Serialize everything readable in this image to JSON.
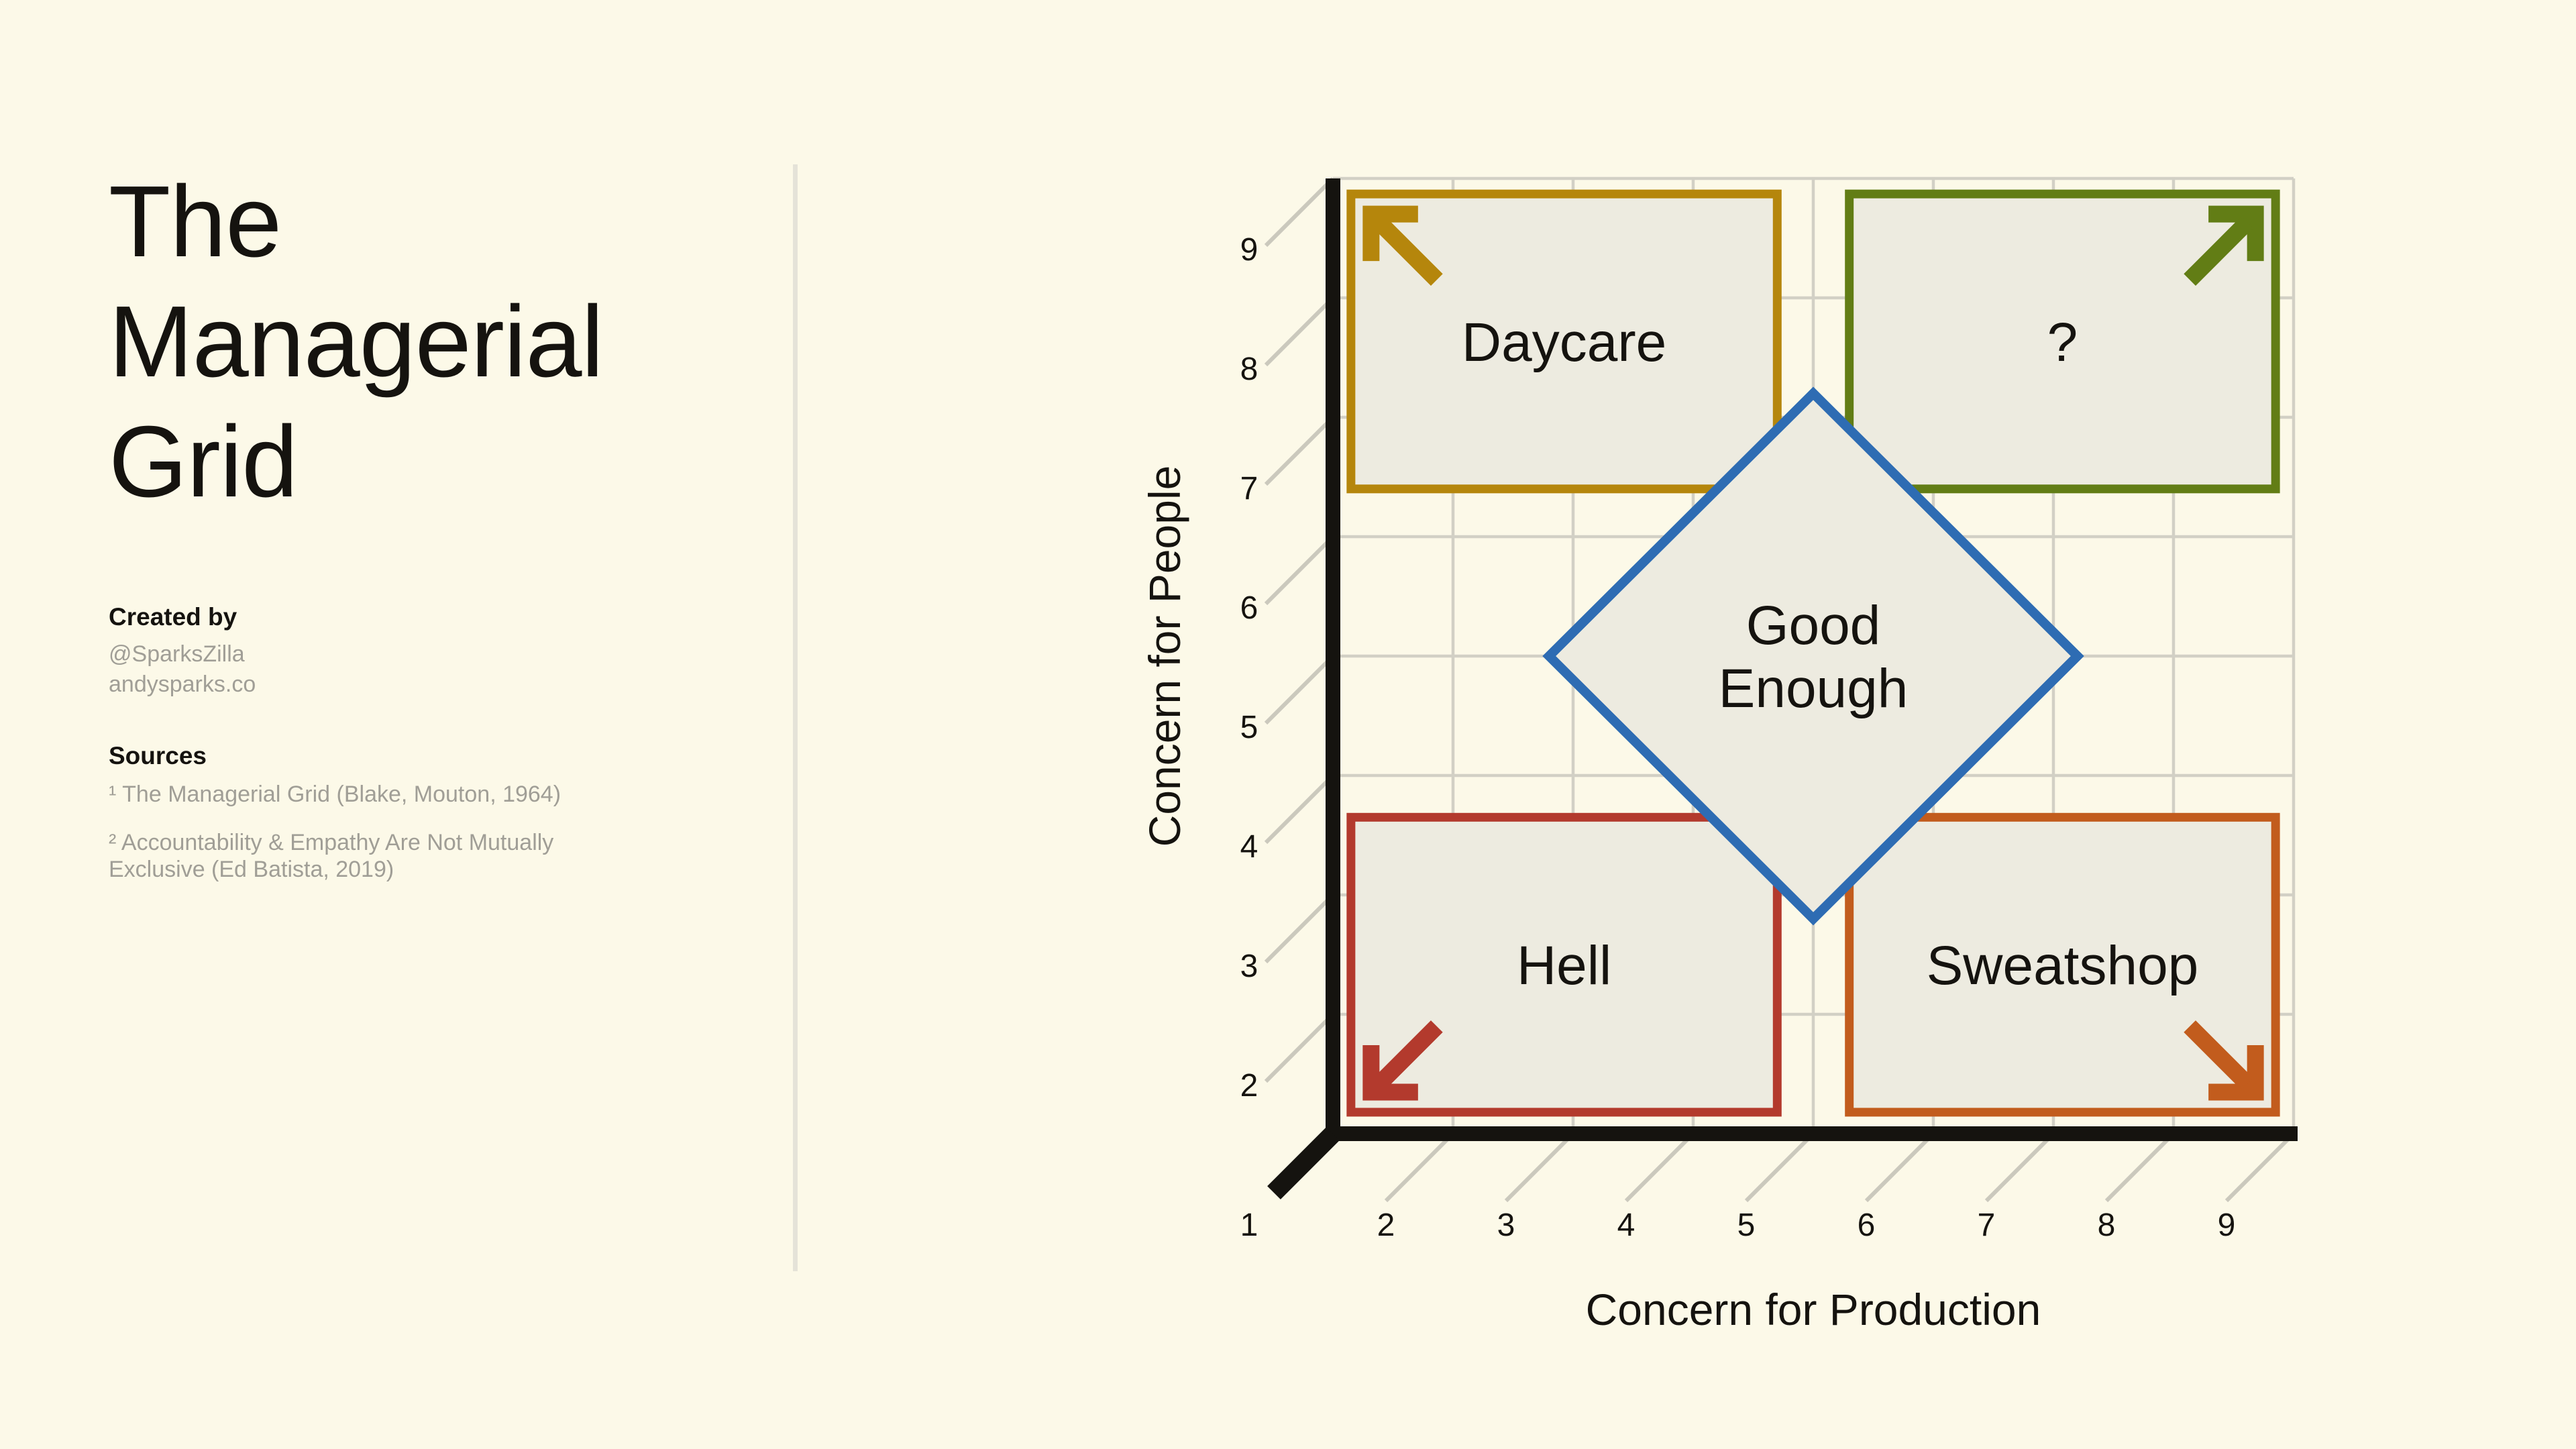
{
  "left_panel": {
    "title": "The Managerial Grid",
    "created_by": {
      "heading": "Created by",
      "handle": "@SparksZilla",
      "website": "andysparks.co"
    },
    "sources": {
      "heading": "Sources",
      "items": [
        "¹ The Managerial Grid (Blake, Mouton, 1964)",
        "² Accountability & Empathy Are Not Mutually Exclusive (Ed Batista, 2019)"
      ]
    }
  },
  "chart_data": {
    "type": "quadrant-grid",
    "xlabel": "Concern for Production",
    "ylabel": "Concern for People",
    "xlim": [
      1,
      9
    ],
    "ylim": [
      1,
      9
    ],
    "x_tick_labels": [
      "1",
      "2",
      "3",
      "4",
      "5",
      "6",
      "7",
      "8",
      "9"
    ],
    "y_tick_labels": [
      "1",
      "2",
      "3",
      "4",
      "5",
      "6",
      "7",
      "8",
      "9"
    ],
    "grid": true,
    "colors": {
      "background": "#FCF9E8",
      "panel_fill": "#EDEBE0",
      "axis": "#15130F",
      "gridline": "#D2D0C5",
      "tick": "#CBC9BD",
      "text": "#15130F",
      "muted_text": "#A09E96",
      "divider": "#E5E3D8"
    },
    "quadrants": [
      {
        "id": "daycare",
        "label": "Daycare",
        "border_color": "#B5860C",
        "x_range": [
          1.15,
          4.7
        ],
        "y_range": [
          6.4,
          8.87
        ],
        "arrow_corner": "top-left"
      },
      {
        "id": "question",
        "label": "?",
        "border_color": "#627D15",
        "x_range": [
          5.3,
          8.85
        ],
        "y_range": [
          6.4,
          8.87
        ],
        "arrow_corner": "top-right"
      },
      {
        "id": "hell",
        "label": "Hell",
        "border_color": "#B33A2D",
        "x_range": [
          1.15,
          4.7
        ],
        "y_range": [
          1.18,
          3.65
        ],
        "arrow_corner": "bottom-left"
      },
      {
        "id": "sweatshop",
        "label": "Sweatshop",
        "border_color": "#C25C1D",
        "x_range": [
          5.3,
          8.85
        ],
        "y_range": [
          1.18,
          3.65
        ],
        "arrow_corner": "bottom-right"
      }
    ],
    "center_diamond": {
      "label_lines": [
        "Good",
        "Enough"
      ],
      "border_color": "#2E6CB3",
      "center": [
        5,
        5
      ],
      "half_diagonal": 2.2
    }
  }
}
